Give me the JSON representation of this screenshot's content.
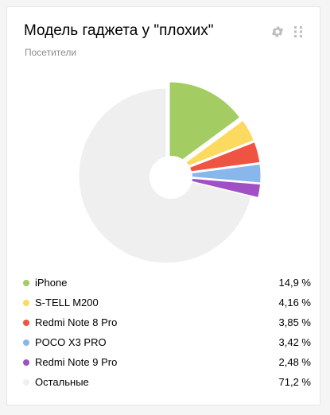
{
  "widget": {
    "title": "Модель гаджета у \"плохих\"",
    "subtitle": "Посетители",
    "icons": [
      "gear-icon",
      "drag-handle-icon"
    ]
  },
  "colors": {
    "iPhone": "#a3cc63",
    "S-TELL M200": "#fcd95f",
    "Redmi Note 8 Pro": "#ef5443",
    "POCO X3 PRO": "#89b7ec",
    "Redmi Note 9 Pro": "#a14fc4",
    "Остальные": "#f0efef"
  },
  "chart_data": {
    "type": "pie",
    "categories": [
      "iPhone",
      "S-TELL M200",
      "Redmi Note 8 Pro",
      "POCO X3 PRO",
      "Redmi Note 9 Pro",
      "Остальные"
    ],
    "values": [
      14.9,
      4.16,
      3.85,
      3.42,
      2.48,
      71.2
    ],
    "value_labels": [
      "14,9 %",
      "4,16 %",
      "3,85 %",
      "3,42 %",
      "2,48 %",
      "71,2 %"
    ],
    "legend": "bottom",
    "highlight_offset_categories": [
      "iPhone",
      "S-TELL M200",
      "Redmi Note 8 Pro",
      "POCO X3 PRO",
      "Redmi Note 9 Pro"
    ]
  }
}
